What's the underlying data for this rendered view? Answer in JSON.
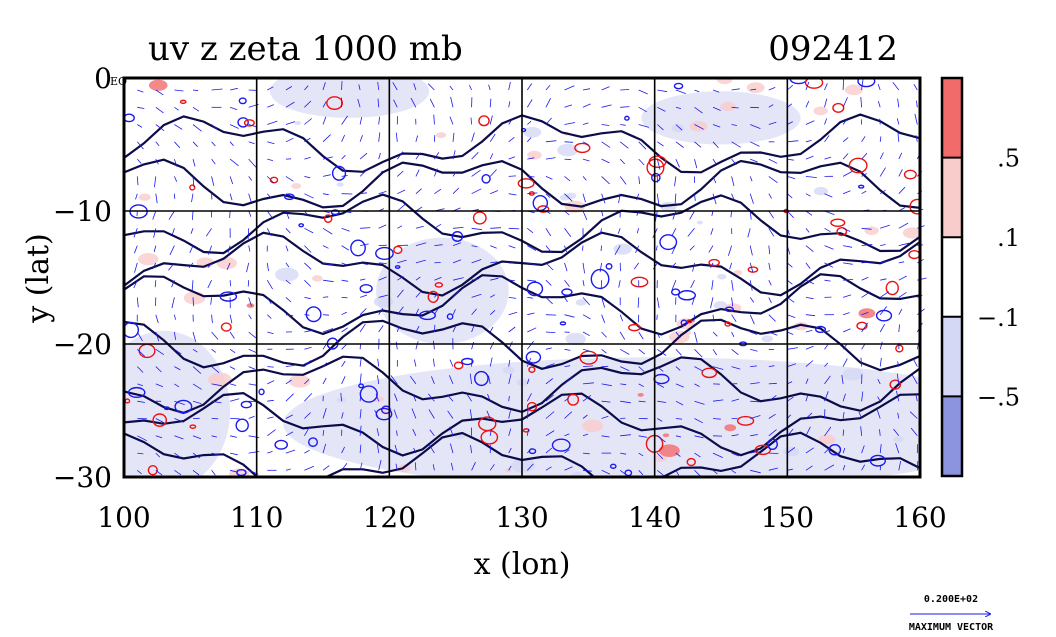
{
  "chart_data": {
    "type": "heatmap",
    "title": "uv z zeta 1000 mb",
    "date_label": "092412",
    "xlabel": "x (lon)",
    "ylabel": "y (lat)",
    "xlim": [
      100,
      160
    ],
    "ylim": [
      -30,
      0
    ],
    "x_ticks": [
      {
        "value": 100,
        "label": "100"
      },
      {
        "value": 110,
        "label": "110"
      },
      {
        "value": 120,
        "label": "120"
      },
      {
        "value": 130,
        "label": "130"
      },
      {
        "value": 140,
        "label": "140"
      },
      {
        "value": 150,
        "label": "150"
      },
      {
        "value": 160,
        "label": "160"
      }
    ],
    "y_ticks": [
      {
        "value": 0,
        "label": "0"
      },
      {
        "value": -10,
        "label": "−10"
      },
      {
        "value": -20,
        "label": "−20"
      },
      {
        "value": -30,
        "label": "−30"
      }
    ],
    "corner_label": "EQ",
    "grid": true,
    "colorbar": {
      "levels": [
        {
          "label": ".5",
          "value": 0.5
        },
        {
          "label": ".1",
          "value": 0.1
        },
        {
          "label": "−.1",
          "value": -0.1
        },
        {
          "label": "−.5",
          "value": -0.5
        }
      ],
      "bands": [
        {
          "range": "above .5",
          "color": "#f26b6b"
        },
        {
          "range": ".1 to .5",
          "color": "#f9cccc"
        },
        {
          "range": "−.1 to .1",
          "color": "#ffffff"
        },
        {
          "range": "−.5 to −.1",
          "color": "#d4d8f4"
        },
        {
          "range": "below −.5",
          "color": "#8c93df"
        }
      ]
    },
    "vector_legend": {
      "magnitude_label": "0.200E+02",
      "caption": "MAXIMUM VECTOR"
    },
    "colors": {
      "positive_contour": "#ee1111",
      "negative_contour": "#1a1aee",
      "height_contour": "#0c0c4a",
      "vector": "#1a1aee",
      "land_shade": "#dfe2f6"
    }
  }
}
